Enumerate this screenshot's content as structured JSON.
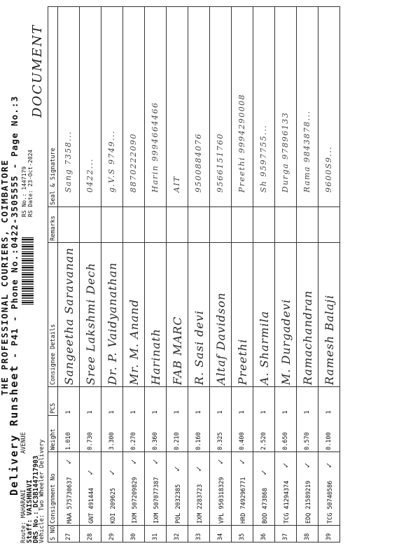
{
  "header": {
    "company": "THE PROFESSIONAL COURIERS, COIMBATORE",
    "title": "Delivery Runsheet",
    "subtitle": "- P41 - Phone No.:0422-3505555 - Page No.:3",
    "route_label": "Route:",
    "route_value": "MAHARANI",
    "route_value2": "AVENUE",
    "staff_label": "Staff:",
    "staff_value": "VAISHNAVI",
    "drs_label": "DRS No.:",
    "drs_value": "DC3B144717903",
    "vehicle_label": "Vehicle:",
    "vehicle_value": "Two Wheeler Delivery",
    "rs_no": "RS No.: 1447179",
    "rs_date": "RS Date: 23-Oct-2024",
    "handwritten_note": "DOCUMENT"
  },
  "table": {
    "columns": [
      "S NO",
      "Consignment No",
      "Weight",
      "PCS",
      "Consignee Details",
      "Remarks",
      "Seal & Signature"
    ],
    "rows": [
      {
        "sno": "27",
        "consignment": "MAA 575730637",
        "weight": "1.010",
        "pcs": "1",
        "consignee": "Sangeetha Saravanan",
        "signature": "Sang 7358..."
      },
      {
        "sno": "28",
        "consignment": "GNT 491444",
        "weight": "0.730",
        "pcs": "1",
        "consignee": "Sree Lakshmi Dech",
        "signature": "0422..."
      },
      {
        "sno": "29",
        "consignment": "KDI 209625",
        "weight": "3.300",
        "pcs": "1",
        "consignee": "Dr. P. Vaidyanathan",
        "signature": "g.V.S 9749..."
      },
      {
        "sno": "30",
        "consignment": "IXM 507209829",
        "weight": "0.270",
        "pcs": "1",
        "consignee": "Mr. M. Anand",
        "signature": "8870222090"
      },
      {
        "sno": "31",
        "consignment": "IXM 507077387",
        "weight": "0.360",
        "pcs": "1",
        "consignee": "Harinath",
        "signature": "Harin 9994664466"
      },
      {
        "sno": "32",
        "consignment": "POL 2032385",
        "weight": "0.210",
        "pcs": "1",
        "consignee": "FAB MARC",
        "signature": "AIT"
      },
      {
        "sno": "33",
        "consignment": "IXM 2283723",
        "weight": "0.160",
        "pcs": "1",
        "consignee": "R. Sasi devi",
        "signature": "9500884076"
      },
      {
        "sno": "34",
        "consignment": "VPL 950318329",
        "weight": "0.325",
        "pcs": "1",
        "consignee": "Altaf Davidson",
        "signature": "9566151760"
      },
      {
        "sno": "35",
        "consignment": "HRD 749296771",
        "weight": "0.400",
        "pcs": "1",
        "consignee": "Preethi",
        "signature": "Preethi 9994290008"
      },
      {
        "sno": "36",
        "consignment": "BOD 473868",
        "weight": "2.520",
        "pcs": "1",
        "consignee": "A. Sharmila",
        "signature": "Sh 9597755..."
      },
      {
        "sno": "37",
        "consignment": "TCG 41294374",
        "weight": "0.650",
        "pcs": "1",
        "consignee": "M. Durgadevi",
        "signature": "Durga 97896133"
      },
      {
        "sno": "38",
        "consignment": "EDQ 21589219",
        "weight": "0.570",
        "pcs": "1",
        "consignee": "Ramachandran",
        "signature": "Rama 9843878..."
      },
      {
        "sno": "39",
        "consignment": "TCG 50740586",
        "weight": "0.100",
        "pcs": "1",
        "consignee": "Ramesh Balaji",
        "signature": "9600S9..."
      }
    ]
  }
}
